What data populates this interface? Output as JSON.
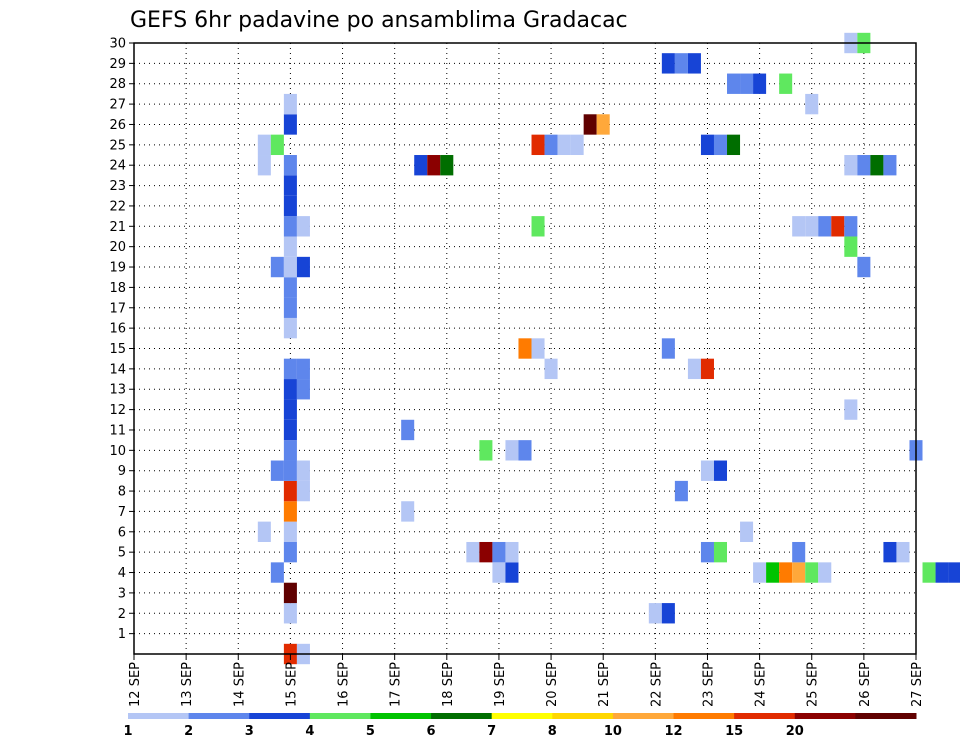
{
  "chart_data": {
    "type": "heatmap",
    "title": "GEFS 6hr padavine po ansamblima Gradacac",
    "xlabel": "",
    "ylabel": "",
    "x_tick_labels": [
      "12 SEP",
      "13 SEP",
      "14 SEP",
      "15 SEP",
      "16 SEP",
      "17 SEP",
      "18 SEP",
      "19 SEP",
      "20 SEP",
      "21 SEP",
      "22 SEP",
      "23 SEP",
      "24 SEP",
      "25 SEP",
      "26 SEP",
      "27 SEP"
    ],
    "x_range_days": [
      12,
      27
    ],
    "y_tick_labels": [
      "1",
      "2",
      "3",
      "4",
      "5",
      "6",
      "7",
      "8",
      "9",
      "10",
      "11",
      "12",
      "13",
      "14",
      "15",
      "16",
      "17",
      "18",
      "19",
      "20",
      "21",
      "22",
      "23",
      "24",
      "25",
      "26",
      "27",
      "28",
      "29",
      "30"
    ],
    "y_range": [
      0,
      30
    ],
    "grid": true,
    "legend": "colorbar-bottom",
    "colorbar": {
      "labels": [
        "1",
        "2",
        "3",
        "4",
        "5",
        "6",
        "7",
        "8",
        "10",
        "12",
        "15",
        "20"
      ],
      "colors": [
        "#b4c6f5",
        "#5e86ec",
        "#1744d6",
        "#5fe85f",
        "#00c300",
        "#006e00",
        "#ffff00",
        "#ffd700",
        "#ffa83a",
        "#ff7b00",
        "#e12b00",
        "#8b0000",
        "#600000"
      ]
    },
    "cells": [
      [
        "SEP 15 00Z",
        0,
        "#e12b00"
      ],
      [
        "SEP 15 06Z",
        0,
        "#b4c6f5"
      ],
      [
        "SEP 15 00Z",
        2,
        "#b4c6f5"
      ],
      [
        "SEP 22 00Z",
        2,
        "#b4c6f5"
      ],
      [
        "SEP 22 06Z",
        2,
        "#1744d6"
      ],
      [
        "SEP 15 00Z",
        3,
        "#600000"
      ],
      [
        "SEP 14 18Z",
        4,
        "#5e86ec"
      ],
      [
        "SEP 19 00Z",
        4,
        "#b4c6f5"
      ],
      [
        "SEP 19 06Z",
        4,
        "#1744d6"
      ],
      [
        "SEP 24 00Z",
        4,
        "#b4c6f5"
      ],
      [
        "SEP 24 06Z",
        4,
        "#00c300"
      ],
      [
        "SEP 24 12Z",
        4,
        "#ff7b00"
      ],
      [
        "SEP 24 18Z",
        4,
        "#ffa83a"
      ],
      [
        "SEP 25 00Z",
        4,
        "#5fe85f"
      ],
      [
        "SEP 25 06Z",
        4,
        "#b4c6f5"
      ],
      [
        "SEP 27 06Z",
        4,
        "#5fe85f"
      ],
      [
        "SEP 27 12Z",
        4,
        "#1744d6"
      ],
      [
        "SEP 27 18Z",
        4,
        "#1744d6"
      ],
      [
        "SEP 15 00Z",
        5,
        "#5e86ec"
      ],
      [
        "SEP 18 12Z",
        5,
        "#b4c6f5"
      ],
      [
        "SEP 18 18Z",
        5,
        "#8b0000"
      ],
      [
        "SEP 19 00Z",
        5,
        "#5e86ec"
      ],
      [
        "SEP 19 06Z",
        5,
        "#b4c6f5"
      ],
      [
        "SEP 23 00Z",
        5,
        "#5e86ec"
      ],
      [
        "SEP 23 06Z",
        5,
        "#5fe85f"
      ],
      [
        "SEP 24 18Z",
        5,
        "#5e86ec"
      ],
      [
        "SEP 26 12Z",
        5,
        "#1744d6"
      ],
      [
        "SEP 26 18Z",
        5,
        "#b4c6f5"
      ],
      [
        "SEP 14 12Z",
        6,
        "#b4c6f5"
      ],
      [
        "SEP 15 00Z",
        6,
        "#b4c6f5"
      ],
      [
        "SEP 23 18Z",
        6,
        "#b4c6f5"
      ],
      [
        "SEP 15 00Z",
        7,
        "#ff7b00"
      ],
      [
        "SEP 17 06Z",
        7,
        "#b4c6f5"
      ],
      [
        "SEP 15 00Z",
        8,
        "#e12b00"
      ],
      [
        "SEP 15 06Z",
        8,
        "#b4c6f5"
      ],
      [
        "SEP 22 12Z",
        8,
        "#5e86ec"
      ],
      [
        "SEP 14 18Z",
        9,
        "#5e86ec"
      ],
      [
        "SEP 15 00Z",
        9,
        "#5e86ec"
      ],
      [
        "SEP 15 06Z",
        9,
        "#b4c6f5"
      ],
      [
        "SEP 23 00Z",
        9,
        "#b4c6f5"
      ],
      [
        "SEP 23 06Z",
        9,
        "#1744d6"
      ],
      [
        "SEP 15 00Z",
        10,
        "#5e86ec"
      ],
      [
        "SEP 18 18Z",
        10,
        "#5fe85f"
      ],
      [
        "SEP 19 06Z",
        10,
        "#b4c6f5"
      ],
      [
        "SEP 19 12Z",
        10,
        "#5e86ec"
      ],
      [
        "SEP 27 00Z",
        10,
        "#5e86ec"
      ],
      [
        "SEP 15 00Z",
        11,
        "#1744d6"
      ],
      [
        "SEP 17 06Z",
        11,
        "#5e86ec"
      ],
      [
        "SEP 15 00Z",
        12,
        "#1744d6"
      ],
      [
        "SEP 25 18Z",
        12,
        "#b4c6f5"
      ],
      [
        "SEP 15 00Z",
        13,
        "#1744d6"
      ],
      [
        "SEP 15 06Z",
        13,
        "#5e86ec"
      ],
      [
        "SEP 15 00Z",
        14,
        "#5e86ec"
      ],
      [
        "SEP 15 06Z",
        14,
        "#5e86ec"
      ],
      [
        "SEP 20 00Z",
        14,
        "#b4c6f5"
      ],
      [
        "SEP 22 18Z",
        14,
        "#b4c6f5"
      ],
      [
        "SEP 23 00Z",
        14,
        "#e12b00"
      ],
      [
        "SEP 19 12Z",
        15,
        "#ff7b00"
      ],
      [
        "SEP 19 18Z",
        15,
        "#b4c6f5"
      ],
      [
        "SEP 22 06Z",
        15,
        "#5e86ec"
      ],
      [
        "SEP 15 00Z",
        16,
        "#b4c6f5"
      ],
      [
        "SEP 15 00Z",
        17,
        "#5e86ec"
      ],
      [
        "SEP 15 00Z",
        18,
        "#5e86ec"
      ],
      [
        "SEP 14 18Z",
        19,
        "#5e86ec"
      ],
      [
        "SEP 15 00Z",
        19,
        "#b4c6f5"
      ],
      [
        "SEP 15 06Z",
        19,
        "#1744d6"
      ],
      [
        "SEP 26 00Z",
        19,
        "#5e86ec"
      ],
      [
        "SEP 15 00Z",
        20,
        "#b4c6f5"
      ],
      [
        "SEP 25 18Z",
        20,
        "#5fe85f"
      ],
      [
        "SEP 15 00Z",
        21,
        "#5e86ec"
      ],
      [
        "SEP 15 06Z",
        21,
        "#b4c6f5"
      ],
      [
        "SEP 19 18Z",
        21,
        "#5fe85f"
      ],
      [
        "SEP 24 18Z",
        21,
        "#b4c6f5"
      ],
      [
        "SEP 25 00Z",
        21,
        "#b4c6f5"
      ],
      [
        "SEP 25 06Z",
        21,
        "#5e86ec"
      ],
      [
        "SEP 25 12Z",
        21,
        "#e12b00"
      ],
      [
        "SEP 25 18Z",
        21,
        "#5e86ec"
      ],
      [
        "SEP 15 00Z",
        22,
        "#1744d6"
      ],
      [
        "SEP 15 00Z",
        23,
        "#1744d6"
      ],
      [
        "SEP 14 12Z",
        24,
        "#b4c6f5"
      ],
      [
        "SEP 15 00Z",
        24,
        "#5e86ec"
      ],
      [
        "SEP 17 12Z",
        24,
        "#1744d6"
      ],
      [
        "SEP 17 18Z",
        24,
        "#8b0000"
      ],
      [
        "SEP 18 00Z",
        24,
        "#006e00"
      ],
      [
        "SEP 25 18Z",
        24,
        "#b4c6f5"
      ],
      [
        "SEP 26 00Z",
        24,
        "#5e86ec"
      ],
      [
        "SEP 26 06Z",
        24,
        "#006e00"
      ],
      [
        "SEP 26 12Z",
        24,
        "#5e86ec"
      ],
      [
        "SEP 14 12Z",
        25,
        "#b4c6f5"
      ],
      [
        "SEP 14 18Z",
        25,
        "#5fe85f"
      ],
      [
        "SEP 19 18Z",
        25,
        "#e12b00"
      ],
      [
        "SEP 20 00Z",
        25,
        "#5e86ec"
      ],
      [
        "SEP 20 06Z",
        25,
        "#b4c6f5"
      ],
      [
        "SEP 20 12Z",
        25,
        "#b4c6f5"
      ],
      [
        "SEP 23 00Z",
        25,
        "#1744d6"
      ],
      [
        "SEP 23 06Z",
        25,
        "#5e86ec"
      ],
      [
        "SEP 23 12Z",
        25,
        "#006e00"
      ],
      [
        "SEP 15 00Z",
        26,
        "#1744d6"
      ],
      [
        "SEP 20 18Z",
        26,
        "#600000"
      ],
      [
        "SEP 21 00Z",
        26,
        "#ffa83a"
      ],
      [
        "SEP 15 00Z",
        27,
        "#b4c6f5"
      ],
      [
        "SEP 25 00Z",
        27,
        "#b4c6f5"
      ],
      [
        "SEP 23 12Z",
        28,
        "#5e86ec"
      ],
      [
        "SEP 23 18Z",
        28,
        "#5e86ec"
      ],
      [
        "SEP 24 00Z",
        28,
        "#1744d6"
      ],
      [
        "SEP 24 12Z",
        28,
        "#5fe85f"
      ],
      [
        "SEP 22 06Z",
        29,
        "#1744d6"
      ],
      [
        "SEP 22 12Z",
        29,
        "#5e86ec"
      ],
      [
        "SEP 22 18Z",
        29,
        "#1744d6"
      ],
      [
        "SEP 25 18Z",
        30,
        "#b4c6f5"
      ],
      [
        "SEP 26 00Z",
        30,
        "#5fe85f"
      ]
    ]
  }
}
